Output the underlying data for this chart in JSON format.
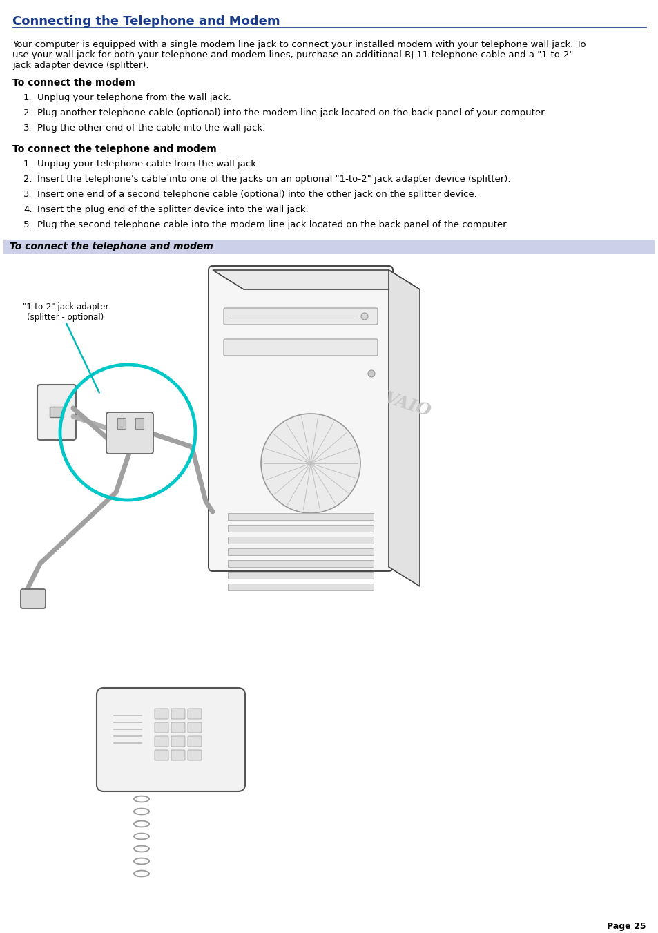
{
  "title": "Connecting the Telephone and Modem",
  "title_color": "#1a3a8a",
  "title_underline_color": "#1a3a8a",
  "bg_color": "#ffffff",
  "body_color": "#000000",
  "intro_lines": [
    "Your computer is equipped with a single modem line jack to connect your installed modem with your telephone wall jack. To",
    "use your wall jack for both your telephone and modem lines, purchase an additional RJ-11 telephone cable and a \"1-to-2\"",
    "jack adapter device (splitter)."
  ],
  "section1_title": "To connect the modem",
  "section1_items": [
    "Unplug your telephone from the wall jack.",
    "Plug another telephone cable (optional) into the modem line jack located on the back panel of your computer",
    "Plug the other end of the cable into the wall jack."
  ],
  "section2_title": "To connect the telephone and modem",
  "section2_items": [
    "Unplug your telephone cable from the wall jack.",
    "Insert the telephone's cable into one of the jacks on an optional \"1-to-2\" jack adapter device (splitter).",
    "Insert one end of a second telephone cable (optional) into the other jack on the splitter device.",
    "Insert the plug end of the splitter device into the wall jack.",
    "Plug the second telephone cable into the modem line jack located on the back panel of the computer."
  ],
  "caption_bar_text": "To connect the telephone and modem",
  "caption_bar_color": "#ccd0e8",
  "caption_text_color": "#000000",
  "page_number": "Page 25",
  "font_size_title": 13,
  "font_size_body": 9.5,
  "font_size_section": 10,
  "font_size_page": 9,
  "annotation_label": "\"1-to-2\" jack adapter\n(splitter - optional)"
}
